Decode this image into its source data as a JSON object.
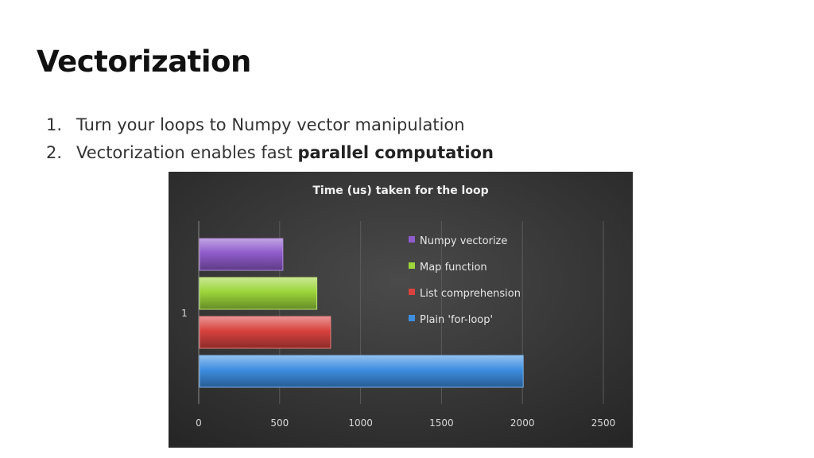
{
  "slide": {
    "title": "Vectorization",
    "bullets": [
      {
        "num": "1.",
        "text": "Turn your loops to Numpy vector manipulation",
        "bold": ""
      },
      {
        "num": "2.",
        "text": "Vectorization enables fast ",
        "bold": "parallel computation"
      }
    ]
  },
  "chart_data": {
    "type": "bar",
    "orientation": "horizontal",
    "title": "Time (us) taken for the loop",
    "categories": [
      "1"
    ],
    "series": [
      {
        "name": "Plain 'for-loop'",
        "values": [
          2000
        ],
        "color": "#3d8ee0"
      },
      {
        "name": "List comprehension",
        "values": [
          810
        ],
        "color": "#d8423f"
      },
      {
        "name": "Map function",
        "values": [
          725
        ],
        "color": "#9cd63a"
      },
      {
        "name": "Numpy vectorize",
        "values": [
          515
        ],
        "color": "#8f5ccc"
      }
    ],
    "xlim": [
      0,
      2500
    ],
    "xticks": [
      "0",
      "500",
      "1000",
      "1500",
      "2000",
      "2500"
    ],
    "grid": true,
    "legend": "upper-right",
    "background": "#3a3a3a"
  }
}
